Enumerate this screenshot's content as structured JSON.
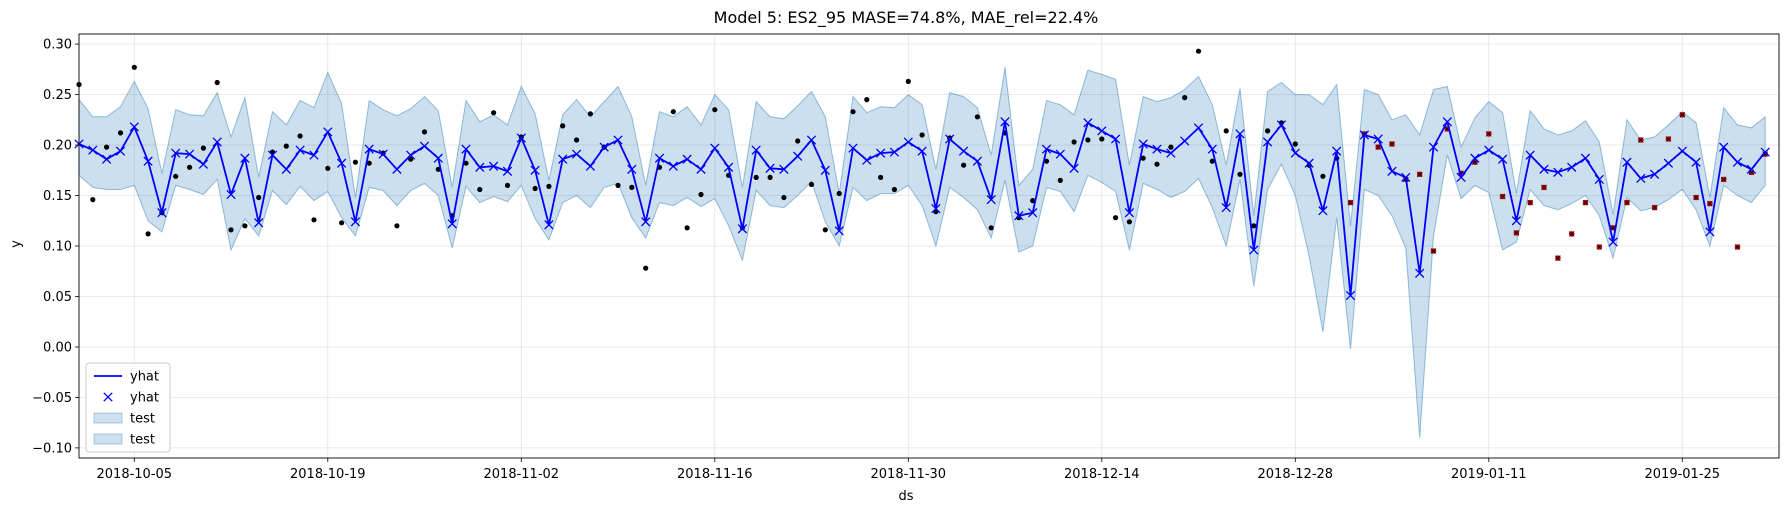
{
  "chart_data": {
    "type": "line",
    "title": "Model 5: ES2_95 MASE=74.8%, MAE_rel=22.4%",
    "xlabel": "ds",
    "ylabel": "y",
    "x_start": "2018-10-01",
    "xlim": [
      "2018-10-01",
      "2019-02-01"
    ],
    "ylim": [
      -0.11,
      0.31
    ],
    "x_ticks": [
      "2018-10-05",
      "2018-10-19",
      "2018-11-02",
      "2018-11-16",
      "2018-11-30",
      "2018-12-14",
      "2018-12-28",
      "2019-01-11",
      "2019-01-25"
    ],
    "y_ticks": [
      "−0.10",
      "−0.05",
      "0.00",
      "0.05",
      "0.10",
      "0.15",
      "0.20",
      "0.25",
      "0.30"
    ],
    "y_tick_values": [
      -0.1,
      -0.05,
      0.0,
      0.05,
      0.1,
      0.15,
      0.2,
      0.25,
      0.3
    ],
    "grid": true,
    "legend_position": "bottom-left",
    "legend": [
      {
        "label": "yhat",
        "kind": "line"
      },
      {
        "label": "yhat",
        "kind": "x-marker"
      },
      {
        "label": "test",
        "kind": "band"
      },
      {
        "label": "test",
        "kind": "band"
      }
    ],
    "colors": {
      "yhat": "#0000ff",
      "band": "#1f77b4",
      "actual": "#000000",
      "test_actual": "#cc0000"
    },
    "yhat": [
      0.201,
      0.195,
      0.186,
      0.194,
      0.218,
      0.184,
      0.133,
      0.192,
      0.191,
      0.181,
      0.203,
      0.151,
      0.187,
      0.123,
      0.19,
      0.176,
      0.195,
      0.19,
      0.213,
      0.182,
      0.124,
      0.196,
      0.191,
      0.176,
      0.19,
      0.199,
      0.187,
      0.122,
      0.196,
      0.178,
      0.179,
      0.174,
      0.207,
      0.175,
      0.121,
      0.186,
      0.191,
      0.179,
      0.198,
      0.205,
      0.176,
      0.124,
      0.187,
      0.179,
      0.186,
      0.176,
      0.197,
      0.178,
      0.117,
      0.195,
      0.177,
      0.176,
      0.189,
      0.205,
      0.175,
      0.115,
      0.197,
      0.185,
      0.192,
      0.193,
      0.203,
      0.194,
      0.137,
      0.206,
      0.194,
      0.184,
      0.146,
      0.223,
      0.13,
      0.133,
      0.196,
      0.191,
      0.177,
      0.222,
      0.214,
      0.206,
      0.133,
      0.201,
      0.196,
      0.192,
      0.204,
      0.217,
      0.196,
      0.138,
      0.211,
      0.096,
      0.203,
      0.22,
      0.192,
      0.182,
      0.135,
      0.194,
      0.051,
      0.21,
      0.206,
      0.174,
      0.168,
      0.073,
      0.198,
      0.223,
      0.168,
      0.187,
      0.195,
      0.186,
      0.125,
      0.19,
      0.176,
      0.173,
      0.178,
      0.187,
      0.166,
      0.104,
      0.183,
      0.167,
      0.171,
      0.182,
      0.194,
      0.183,
      0.114,
      0.198,
      0.183,
      0.176,
      0.193
    ],
    "lower": [
      0.17,
      0.158,
      0.156,
      0.156,
      0.16,
      0.125,
      0.114,
      0.16,
      0.156,
      0.151,
      0.166,
      0.096,
      0.127,
      0.11,
      0.155,
      0.141,
      0.159,
      0.145,
      0.154,
      0.128,
      0.11,
      0.158,
      0.155,
      0.14,
      0.155,
      0.162,
      0.15,
      0.098,
      0.159,
      0.143,
      0.149,
      0.144,
      0.16,
      0.127,
      0.106,
      0.143,
      0.15,
      0.138,
      0.158,
      0.162,
      0.128,
      0.108,
      0.143,
      0.14,
      0.148,
      0.139,
      0.147,
      0.12,
      0.086,
      0.155,
      0.14,
      0.138,
      0.15,
      0.164,
      0.124,
      0.1,
      0.158,
      0.145,
      0.152,
      0.152,
      0.16,
      0.14,
      0.1,
      0.158,
      0.148,
      0.136,
      0.108,
      0.165,
      0.094,
      0.1,
      0.158,
      0.154,
      0.134,
      0.17,
      0.163,
      0.154,
      0.096,
      0.162,
      0.156,
      0.148,
      0.154,
      0.167,
      0.138,
      0.1,
      0.166,
      0.06,
      0.156,
      0.181,
      0.15,
      0.09,
      0.015,
      0.128,
      -0.002,
      0.156,
      0.15,
      0.13,
      0.098,
      -0.09,
      0.11,
      0.19,
      0.147,
      0.16,
      0.153,
      0.096,
      0.104,
      0.156,
      0.14,
      0.136,
      0.142,
      0.15,
      0.13,
      0.088,
      0.148,
      0.135,
      0.138,
      0.146,
      0.156,
      0.136,
      0.1,
      0.16,
      0.15,
      0.143,
      0.16
    ],
    "upper": [
      0.245,
      0.228,
      0.228,
      0.238,
      0.263,
      0.236,
      0.172,
      0.235,
      0.23,
      0.229,
      0.252,
      0.208,
      0.247,
      0.168,
      0.233,
      0.22,
      0.244,
      0.237,
      0.272,
      0.241,
      0.148,
      0.244,
      0.235,
      0.229,
      0.236,
      0.248,
      0.234,
      0.158,
      0.244,
      0.223,
      0.23,
      0.22,
      0.258,
      0.231,
      0.165,
      0.23,
      0.245,
      0.228,
      0.243,
      0.258,
      0.228,
      0.16,
      0.233,
      0.228,
      0.238,
      0.22,
      0.25,
      0.235,
      0.158,
      0.243,
      0.228,
      0.226,
      0.239,
      0.253,
      0.228,
      0.152,
      0.248,
      0.232,
      0.238,
      0.237,
      0.25,
      0.24,
      0.176,
      0.252,
      0.248,
      0.237,
      0.19,
      0.277,
      0.16,
      0.176,
      0.244,
      0.24,
      0.23,
      0.274,
      0.27,
      0.265,
      0.18,
      0.248,
      0.243,
      0.247,
      0.255,
      0.268,
      0.24,
      0.18,
      0.256,
      0.13,
      0.253,
      0.262,
      0.25,
      0.25,
      0.24,
      0.26,
      0.12,
      0.255,
      0.25,
      0.225,
      0.23,
      0.21,
      0.255,
      0.258,
      0.198,
      0.227,
      0.243,
      0.232,
      0.152,
      0.234,
      0.216,
      0.21,
      0.214,
      0.224,
      0.203,
      0.131,
      0.225,
      0.205,
      0.208,
      0.22,
      0.233,
      0.222,
      0.148,
      0.237,
      0.22,
      0.217,
      0.228
    ],
    "actual_train": [
      [
        "2018-10-01",
        0.26
      ],
      [
        "2018-10-02",
        0.146
      ],
      [
        "2018-10-03",
        0.198
      ],
      [
        "2018-10-04",
        0.212
      ],
      [
        "2018-10-05",
        0.277
      ],
      [
        "2018-10-06",
        0.112
      ],
      [
        "2018-10-07",
        0.133
      ],
      [
        "2018-10-08",
        0.169
      ],
      [
        "2018-10-09",
        0.178
      ],
      [
        "2018-10-10",
        0.197
      ],
      [
        "2018-10-11",
        0.262
      ],
      [
        "2018-10-12",
        0.116
      ],
      [
        "2018-10-13",
        0.12
      ],
      [
        "2018-10-14",
        0.148
      ],
      [
        "2018-10-15",
        0.193
      ],
      [
        "2018-10-16",
        0.199
      ],
      [
        "2018-10-17",
        0.209
      ],
      [
        "2018-10-18",
        0.126
      ],
      [
        "2018-10-19",
        0.177
      ],
      [
        "2018-10-20",
        0.123
      ],
      [
        "2018-10-21",
        0.183
      ],
      [
        "2018-10-22",
        0.182
      ],
      [
        "2018-10-23",
        0.192
      ],
      [
        "2018-10-24",
        0.12
      ],
      [
        "2018-10-25",
        0.186
      ],
      [
        "2018-10-26",
        0.213
      ],
      [
        "2018-10-27",
        0.176
      ],
      [
        "2018-10-28",
        0.13
      ],
      [
        "2018-10-29",
        0.182
      ],
      [
        "2018-10-30",
        0.156
      ],
      [
        "2018-10-31",
        0.232
      ],
      [
        "2018-11-01",
        0.16
      ],
      [
        "2018-11-02",
        0.208
      ],
      [
        "2018-11-03",
        0.157
      ],
      [
        "2018-11-04",
        0.159
      ],
      [
        "2018-11-05",
        0.219
      ],
      [
        "2018-11-06",
        0.205
      ],
      [
        "2018-11-07",
        0.231
      ],
      [
        "2018-11-08",
        0.198
      ],
      [
        "2018-11-09",
        0.16
      ],
      [
        "2018-11-10",
        0.158
      ],
      [
        "2018-11-11",
        0.078
      ],
      [
        "2018-11-12",
        0.178
      ],
      [
        "2018-11-13",
        0.233
      ],
      [
        "2018-11-14",
        0.118
      ],
      [
        "2018-11-15",
        0.151
      ],
      [
        "2018-11-16",
        0.235
      ],
      [
        "2018-11-17",
        0.17
      ],
      [
        "2018-11-18",
        0.118
      ],
      [
        "2018-11-19",
        0.168
      ],
      [
        "2018-11-20",
        0.168
      ],
      [
        "2018-11-21",
        0.148
      ],
      [
        "2018-11-22",
        0.204
      ],
      [
        "2018-11-23",
        0.161
      ],
      [
        "2018-11-24",
        0.116
      ],
      [
        "2018-11-25",
        0.152
      ],
      [
        "2018-11-26",
        0.233
      ],
      [
        "2018-11-27",
        0.245
      ],
      [
        "2018-11-28",
        0.168
      ],
      [
        "2018-11-29",
        0.156
      ],
      [
        "2018-11-30",
        0.263
      ],
      [
        "2018-12-01",
        0.21
      ],
      [
        "2018-12-02",
        0.134
      ],
      [
        "2018-12-03",
        0.207
      ],
      [
        "2018-12-04",
        0.18
      ],
      [
        "2018-12-05",
        0.228
      ],
      [
        "2018-12-06",
        0.118
      ],
      [
        "2018-12-07",
        0.212
      ],
      [
        "2018-12-08",
        0.128
      ],
      [
        "2018-12-09",
        0.145
      ],
      [
        "2018-12-10",
        0.184
      ],
      [
        "2018-12-11",
        0.165
      ],
      [
        "2018-12-12",
        0.203
      ],
      [
        "2018-12-13",
        0.205
      ],
      [
        "2018-12-14",
        0.206
      ],
      [
        "2018-12-15",
        0.128
      ],
      [
        "2018-12-16",
        0.124
      ],
      [
        "2018-12-17",
        0.187
      ],
      [
        "2018-12-18",
        0.181
      ],
      [
        "2018-12-19",
        0.198
      ],
      [
        "2018-12-20",
        0.247
      ],
      [
        "2018-12-21",
        0.293
      ],
      [
        "2018-12-22",
        0.184
      ],
      [
        "2018-12-23",
        0.214
      ],
      [
        "2018-12-24",
        0.171
      ],
      [
        "2018-12-25",
        0.12
      ],
      [
        "2018-12-26",
        0.214
      ],
      [
        "2018-12-27",
        0.222
      ],
      [
        "2018-12-28",
        0.201
      ],
      [
        "2018-12-29",
        0.18
      ],
      [
        "2018-12-30",
        0.169
      ],
      [
        "2018-12-31",
        0.187
      ]
    ],
    "actual_test": [
      [
        "2019-01-01",
        0.143
      ],
      [
        "2019-01-02",
        0.211
      ],
      [
        "2019-01-03",
        0.198
      ],
      [
        "2019-01-04",
        0.201
      ],
      [
        "2019-01-05",
        0.166
      ],
      [
        "2019-01-06",
        0.171
      ],
      [
        "2019-01-07",
        0.095
      ],
      [
        "2019-01-08",
        0.216
      ],
      [
        "2019-01-09",
        0.172
      ],
      [
        "2019-01-10",
        0.183
      ],
      [
        "2019-01-11",
        0.211
      ],
      [
        "2019-01-12",
        0.149
      ],
      [
        "2019-01-13",
        0.113
      ],
      [
        "2019-01-14",
        0.143
      ],
      [
        "2019-01-15",
        0.158
      ],
      [
        "2019-01-16",
        0.088
      ],
      [
        "2019-01-17",
        0.112
      ],
      [
        "2019-01-18",
        0.143
      ],
      [
        "2019-01-19",
        0.099
      ],
      [
        "2019-01-20",
        0.118
      ],
      [
        "2019-01-21",
        0.143
      ],
      [
        "2019-01-22",
        0.205
      ],
      [
        "2019-01-23",
        0.138
      ],
      [
        "2019-01-24",
        0.206
      ],
      [
        "2019-01-25",
        0.23
      ],
      [
        "2019-01-26",
        0.148
      ],
      [
        "2019-01-27",
        0.142
      ],
      [
        "2019-01-28",
        0.166
      ],
      [
        "2019-01-29",
        0.099
      ],
      [
        "2019-01-30",
        0.173
      ],
      [
        "2019-01-31",
        0.191
      ]
    ]
  }
}
